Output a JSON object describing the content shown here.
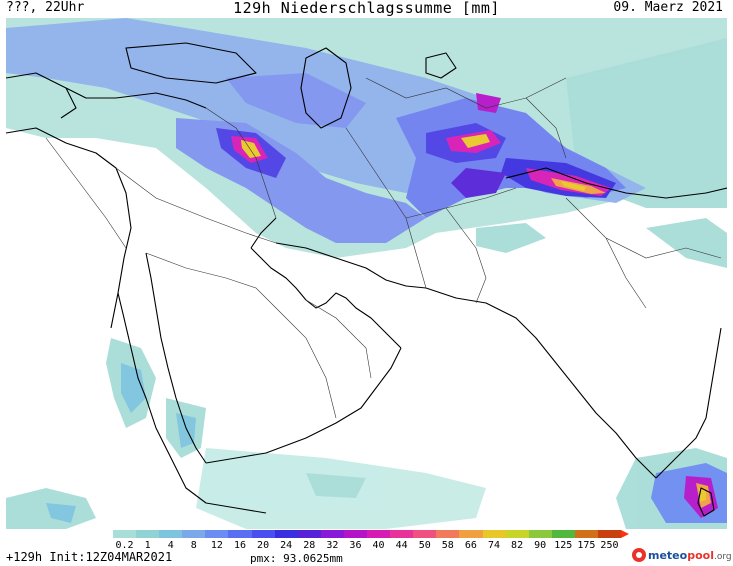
{
  "header": {
    "left": "???, 22Uhr",
    "title": "129h Niederschlagssumme [mm]",
    "right": "09. Maerz 2021"
  },
  "colorbar": {
    "labels": [
      "0.2",
      "1",
      "4",
      "8",
      "12",
      "16",
      "20",
      "24",
      "28",
      "32",
      "36",
      "40",
      "44",
      "50",
      "58",
      "66",
      "74",
      "82",
      "90",
      "125",
      "175",
      "250"
    ],
    "colors": [
      "#a8ddd8",
      "#8fd3d5",
      "#7dc4de",
      "#7aa8e8",
      "#6b8cf0",
      "#5a6ef2",
      "#4a4ff0",
      "#3a2fe0",
      "#5522d8",
      "#8a18d8",
      "#b414c8",
      "#d81ab4",
      "#e8329a",
      "#f05080",
      "#f27a5c",
      "#f0a040",
      "#e8c828",
      "#c8d428",
      "#8cc83c",
      "#50b83c",
      "#d07018",
      "#c84010"
    ]
  },
  "map": {
    "region": "Middle East / South Asia",
    "shading_colors": {
      "light": "#a8ddd8",
      "medium": "#7aa8e8",
      "strong": "#3a2fe0",
      "heavy": "#d81ab4",
      "extreme": "#f0a040",
      "peak": "#e8c828"
    }
  },
  "footer": {
    "left": "+129h Init:12Z04MAR2021",
    "pmx": "pmx: 93.0625mm"
  },
  "logo": {
    "text_main": "meteo",
    "text_accent": "pool",
    "text_tld": ".org"
  }
}
